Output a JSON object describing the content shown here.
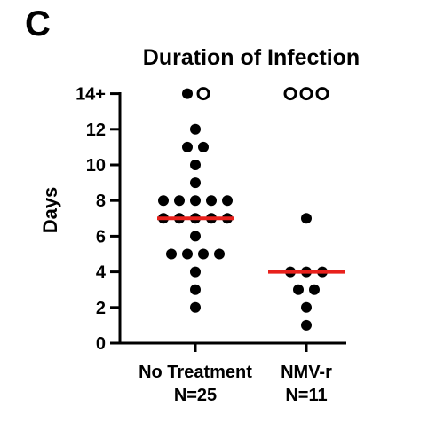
{
  "panel_label": "C",
  "chart_data": {
    "type": "scatter",
    "title": "Duration of Infection",
    "xlabel": "",
    "ylabel": "Days",
    "ylim": [
      0,
      14
    ],
    "yticks": [
      0,
      2,
      4,
      6,
      8,
      10,
      12,
      14
    ],
    "ytick_labels": [
      "0",
      "2",
      "4",
      "6",
      "8",
      "10",
      "12",
      "14+"
    ],
    "grid": false,
    "categories": [
      "No Treatment",
      "NMV-r"
    ],
    "category_counts": [
      "N=25",
      "N=11"
    ],
    "groups": [
      {
        "category": "No Treatment",
        "values": [
          14,
          12,
          11,
          11,
          10,
          9,
          8,
          8,
          8,
          8,
          8,
          7,
          7,
          7,
          7,
          7,
          6,
          5,
          5,
          5,
          5,
          4,
          3,
          2
        ],
        "censored_values": [
          14
        ],
        "median": 7
      },
      {
        "category": "NMV-r",
        "values": [
          7,
          4,
          4,
          4,
          3,
          3,
          2,
          1
        ],
        "censored_values": [
          14,
          14,
          14
        ],
        "median": 4
      }
    ],
    "marker_filled": "#000000",
    "marker_open": "#ffffff",
    "median_color": "#e8211c"
  }
}
